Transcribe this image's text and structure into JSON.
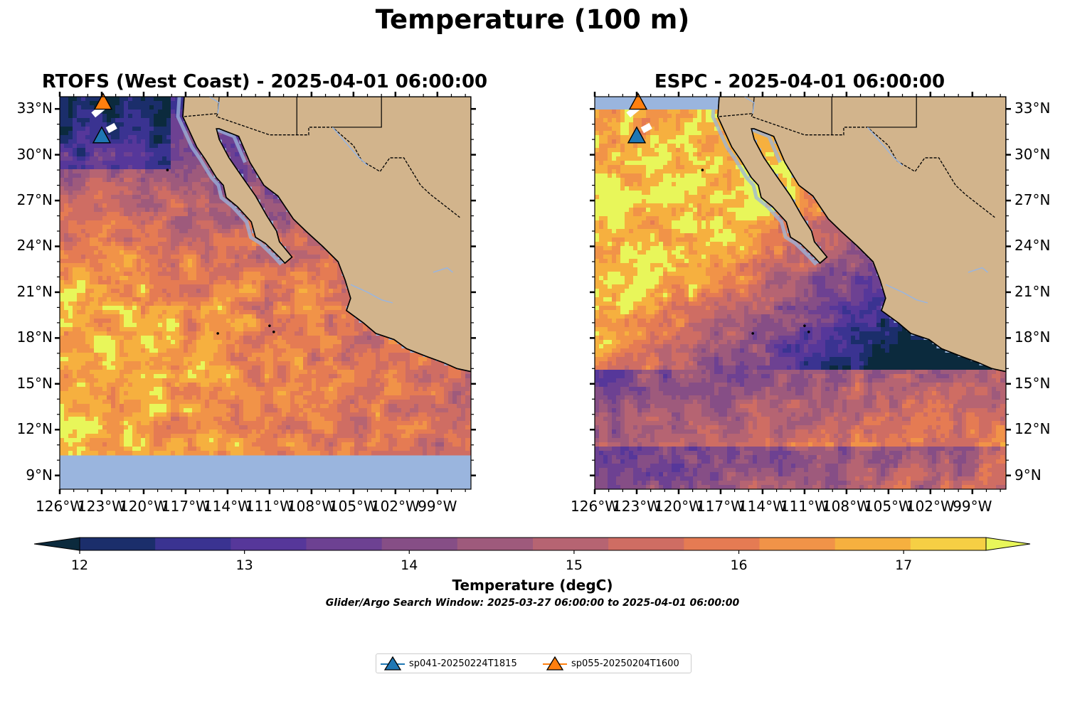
{
  "figure": {
    "title": "Temperature (100 m)",
    "search_window": "Glider/Argo Search Window: 2025-03-27 06:00:00 to 2025-04-01 06:00:00"
  },
  "panels": [
    {
      "id": "rtofs",
      "title": "RTOFS (West Coast) - 2025-04-01 06:00:00"
    },
    {
      "id": "espc",
      "title": "ESPC - 2025-04-01 06:00:00"
    }
  ],
  "axes": {
    "lon_labels": [
      "126°W",
      "123°W",
      "120°W",
      "117°W",
      "114°W",
      "111°W",
      "108°W",
      "105°W",
      "102°W",
      "99°W"
    ],
    "lon_values": [
      -126,
      -123,
      -120,
      -117,
      -114,
      -111,
      -108,
      -105,
      -102,
      -99
    ],
    "lat_labels": [
      "33°N",
      "30°N",
      "27°N",
      "24°N",
      "21°N",
      "18°N",
      "15°N",
      "12°N",
      "9°N"
    ],
    "lat_values": [
      33,
      30,
      27,
      24,
      21,
      18,
      15,
      12,
      9
    ],
    "lon_range": [
      -126,
      -96.6
    ],
    "lat_range": [
      8.1,
      33.8
    ]
  },
  "colorbar": {
    "label": "Temperature (degC)",
    "ticks": [
      "12",
      "13",
      "14",
      "15",
      "16",
      "17"
    ],
    "tick_values": [
      12,
      13,
      14,
      15,
      16,
      17
    ],
    "range": [
      12,
      17.5
    ],
    "step": 0.5,
    "extend": "both",
    "colors": [
      "#0b2a3d",
      "#1b2e6b",
      "#3a3391",
      "#56379a",
      "#6d4192",
      "#864e86",
      "#9e5a7c",
      "#b66472",
      "#cf6d63",
      "#e57b53",
      "#f19348",
      "#f6b03f",
      "#f6cf44",
      "#e8f65a"
    ],
    "land": "#d2b48c",
    "nodata": "#9ab5de"
  },
  "legend": [
    {
      "name": "sp041-20250224T1815",
      "color": "#1f77b4"
    },
    {
      "name": "sp055-20250204T1600",
      "color": "#ff7f0e"
    }
  ],
  "chart_data": [
    {
      "type": "heatmap",
      "title": "RTOFS (West Coast) - 2025-04-01 06:00:00",
      "value_label": "Temperature (degC)",
      "color_range": [
        12,
        17.5
      ],
      "markers": [
        {
          "name": "sp041-20250224T1815",
          "lon": -123.0,
          "lat": 31.2
        },
        {
          "name": "sp055-20250204T1600",
          "lon": -122.9,
          "lat": 33.4
        }
      ],
      "temperature_regions": [
        {
          "region": "northwest offshore",
          "approx_temp": 12.3
        },
        {
          "region": "Baja California coast",
          "approx_temp": 13.5
        },
        {
          "region": "central offshore",
          "approx_temp": 16.5
        },
        {
          "region": "southwest offshore",
          "approx_temp": 17.5
        },
        {
          "region": "southern Mexico coast",
          "approx_temp": 15.5
        }
      ],
      "nodata_below_lat": 10.2
    },
    {
      "type": "heatmap",
      "title": "ESPC - 2025-04-01 06:00:00",
      "value_label": "Temperature (degC)",
      "color_range": [
        12,
        17.5
      ],
      "markers": [
        {
          "name": "sp041-20250224T1815",
          "lon": -123.0,
          "lat": 31.2
        },
        {
          "name": "sp055-20250204T1600",
          "lon": -122.9,
          "lat": 33.4
        }
      ],
      "temperature_regions": [
        {
          "region": "northern offshore",
          "approx_temp": 12.2
        },
        {
          "region": "western offshore",
          "approx_temp": 17.5
        },
        {
          "region": "central band",
          "approx_temp": 14.0
        },
        {
          "region": "south offshore",
          "approx_temp": 16.0
        },
        {
          "region": "far south",
          "approx_temp": 13.5
        }
      ],
      "nodata_above_lat": 33.0
    }
  ]
}
